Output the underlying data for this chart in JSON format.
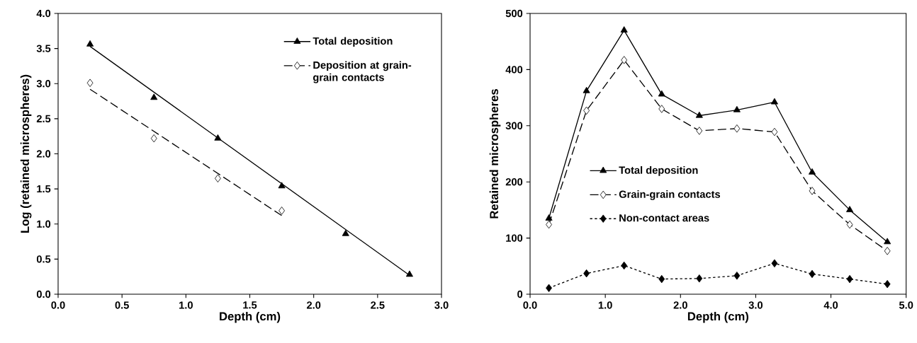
{
  "chart_data": [
    {
      "type": "scatter",
      "xlabel": "Depth (cm)",
      "ylabel": "Log (retained microspheres)",
      "xlim": [
        0,
        3
      ],
      "ylim": [
        0,
        4
      ],
      "xticks": [
        {
          "value": 0,
          "label": "0.0"
        },
        {
          "value": 0.5,
          "label": "0.5"
        },
        {
          "value": 1,
          "label": "1.0"
        },
        {
          "value": 1.5,
          "label": "1.5"
        },
        {
          "value": 2,
          "label": "2.0"
        },
        {
          "value": 2.5,
          "label": "2.5"
        },
        {
          "value": 3,
          "label": "3.0"
        }
      ],
      "yticks": [
        {
          "value": 0,
          "label": "0.0"
        },
        {
          "value": 0.5,
          "label": "0.5"
        },
        {
          "value": 1,
          "label": "1.0"
        },
        {
          "value": 1.5,
          "label": "1.5"
        },
        {
          "value": 2,
          "label": "2.0"
        },
        {
          "value": 2.5,
          "label": "2.5"
        },
        {
          "value": 3,
          "label": "3.0"
        },
        {
          "value": 3.5,
          "label": "3.5"
        },
        {
          "value": 4,
          "label": "4.0"
        }
      ],
      "grid": false,
      "legend": "top right",
      "series": [
        {
          "name": "Total deposition",
          "color": "#000000",
          "marker": "triangle",
          "line_style": "solid",
          "x": [
            0.25,
            0.75,
            1.25,
            1.75,
            2.25,
            2.75
          ],
          "values": [
            3.56,
            2.8,
            2.22,
            1.54,
            0.86,
            0.28
          ]
        },
        {
          "name": "Deposition at grain-grain contacts",
          "color": "#000000",
          "marker": "diamond",
          "line_style": "dashed",
          "x": [
            0.25,
            0.75,
            1.25,
            1.75
          ],
          "values": [
            3.01,
            2.22,
            1.65,
            1.19
          ]
        },
        {
          "type": "line",
          "color": "#000000",
          "marker": "none",
          "line_style": "solid",
          "x": [
            0.25,
            2.75
          ],
          "values": [
            3.53,
            0.27
          ]
        },
        {
          "type": "line",
          "color": "#000000",
          "marker": "none",
          "line_style": "dashed",
          "x": [
            0.25,
            1.75
          ],
          "values": [
            2.92,
            1.12
          ]
        }
      ]
    },
    {
      "type": "line",
      "xlabel": "Depth (cm)",
      "ylabel": "Retained microspheres",
      "xlim": [
        0,
        5
      ],
      "ylim": [
        0,
        500
      ],
      "xticks": [
        {
          "value": 0,
          "label": "0.0"
        },
        {
          "value": 1,
          "label": "1.0"
        },
        {
          "value": 2,
          "label": "2.0"
        },
        {
          "value": 3,
          "label": "3.0"
        },
        {
          "value": 4,
          "label": "4.0"
        },
        {
          "value": 5,
          "label": "5.0"
        }
      ],
      "yticks": [
        0,
        100,
        200,
        300,
        400,
        500
      ],
      "grid": false,
      "legend": "center",
      "x": [
        0.25,
        0.75,
        1.25,
        1.75,
        2.25,
        2.75,
        3.25,
        3.75,
        4.25,
        4.75
      ],
      "series": [
        {
          "name": "Total deposition",
          "color": "#000000",
          "marker": "triangle",
          "line_style": "solid",
          "values": [
            135,
            362,
            470,
            356,
            318,
            328,
            342,
            217,
            150,
            93
          ]
        },
        {
          "name": "Grain-grain contacts",
          "color": "#000000",
          "marker": "diamond",
          "line_style": "dashed",
          "values": [
            124,
            327,
            417,
            330,
            291,
            295,
            289,
            184,
            124,
            77
          ]
        },
        {
          "name": "Non-contact areas",
          "color": "#000000",
          "marker": "diamond",
          "line_style": "dotted",
          "values": [
            11,
            37,
            51,
            27,
            28,
            33,
            55,
            36,
            27,
            18
          ]
        }
      ]
    }
  ]
}
